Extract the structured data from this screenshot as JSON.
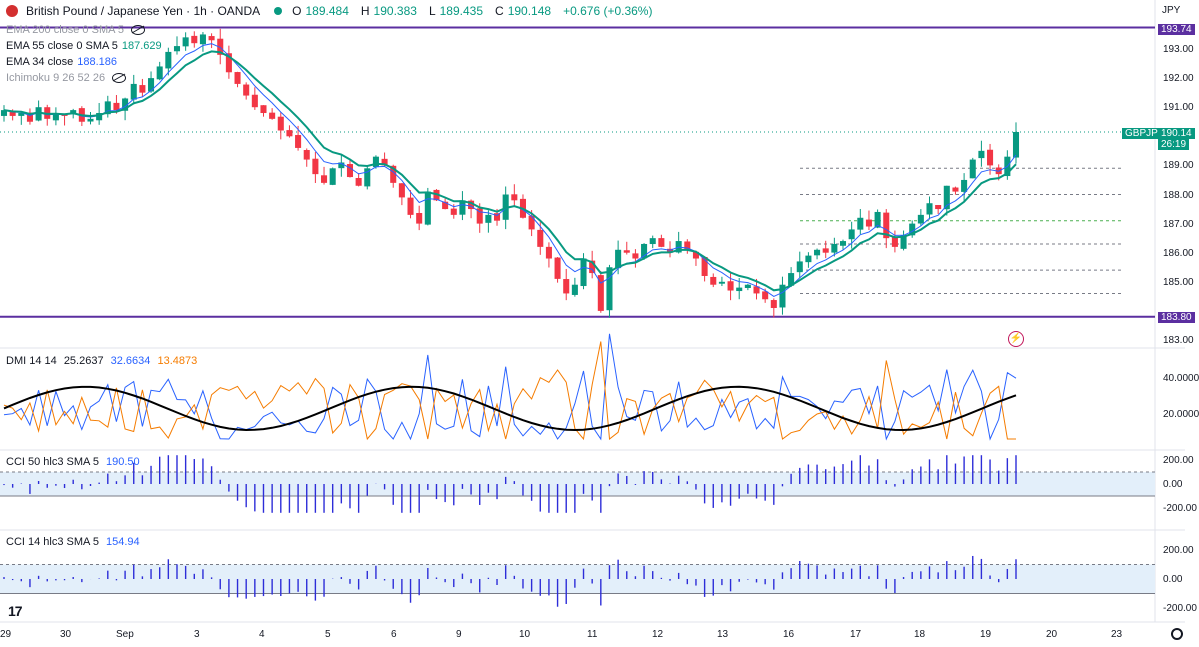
{
  "header": {
    "symbol_title": "British Pound / Japanese Yen · 1h · OANDA",
    "ohlc": [
      {
        "label": "O",
        "value": "189.484"
      },
      {
        "label": "H",
        "value": "190.383"
      },
      {
        "label": "L",
        "value": "189.435"
      },
      {
        "label": "C",
        "value": "190.148"
      }
    ],
    "change": "+0.676 (+0.36%)"
  },
  "indicators": {
    "ema200": {
      "label": "EMA 200 close 0 SMA 5"
    },
    "ema55": {
      "label": "EMA 55 close 0 SMA 5",
      "value": "187.629"
    },
    "ema34": {
      "label": "EMA 34 close",
      "value": "188.186"
    },
    "ichimoku": {
      "label": "Ichimoku 9 26 52 26"
    },
    "dmi": {
      "label": "DMI 14 14",
      "adx": "25.2637",
      "plus_di": "32.6634",
      "minus_di": "13.4873"
    },
    "cci50": {
      "label": "CCI 50 hlc3 SMA 5",
      "value": "190.50"
    },
    "cci14": {
      "label": "CCI 14 hlc3 SMA 5",
      "value": "154.94"
    }
  },
  "price_axis": {
    "currency": "JPY",
    "ticks": [
      "193.00",
      "192.00",
      "191.00",
      "189.00",
      "188.00",
      "187.00",
      "186.00",
      "185.00",
      "183.00"
    ],
    "tags": {
      "upper_line": "193.74",
      "symbol": "GBPJPY",
      "last_price": "190.14",
      "countdown": "26:19",
      "lower_line": "183.80"
    }
  },
  "dmi_axis": {
    "ticks": [
      "40.0000",
      "20.0000"
    ]
  },
  "cci50_axis": {
    "ticks": [
      "200.00",
      "0.00",
      "-200.00"
    ]
  },
  "cci14_axis": {
    "ticks": [
      "200.00",
      "0.00",
      "-200.00"
    ]
  },
  "time_axis": {
    "ticks": [
      "29",
      "30",
      "Sep",
      "3",
      "4",
      "5",
      "6",
      "9",
      "10",
      "11",
      "12",
      "13",
      "16",
      "17",
      "18",
      "19",
      "20",
      "23"
    ]
  },
  "branding": {
    "logo_text": "17"
  },
  "colors": {
    "up": "#089981",
    "down": "#f23645",
    "ema55": "#089981",
    "ema34": "#2962ff",
    "hline": "#5b2fa0",
    "adx": "#000000",
    "plus_di": "#2962ff",
    "minus_di": "#f57c00",
    "cci_bar": "#2d2dd8",
    "cci_band": "#e3effa"
  },
  "chart_data": {
    "type": "candlestick",
    "symbol": "GBPJPY",
    "timeframe": "1h",
    "price_range": [
      183.0,
      193.9
    ],
    "horizontal_levels": [
      193.74,
      183.8
    ],
    "last": 190.148,
    "closes": [
      190.9,
      190.7,
      190.8,
      190.5,
      191.0,
      190.6,
      190.8,
      190.7,
      190.9,
      190.5,
      190.6,
      190.8,
      191.2,
      190.9,
      191.3,
      191.8,
      191.5,
      192.0,
      192.4,
      192.9,
      193.1,
      193.4,
      193.2,
      193.5,
      193.3,
      192.8,
      192.2,
      191.8,
      191.4,
      191.0,
      190.8,
      190.6,
      190.2,
      190.0,
      189.6,
      189.2,
      188.7,
      188.4,
      188.9,
      189.1,
      188.6,
      188.3,
      188.9,
      189.3,
      189.0,
      188.4,
      187.9,
      187.3,
      187.0,
      188.1,
      187.8,
      187.5,
      187.3,
      187.8,
      187.5,
      187.0,
      187.3,
      187.1,
      188.0,
      187.8,
      187.2,
      186.8,
      186.2,
      185.8,
      185.1,
      184.6,
      184.9,
      185.8,
      185.3,
      184.0,
      185.5,
      186.1,
      186.0,
      185.8,
      186.3,
      186.5,
      186.2,
      186.0,
      186.4,
      186.1,
      185.8,
      185.2,
      184.9,
      185.0,
      184.7,
      184.8,
      184.9,
      184.6,
      184.4,
      184.1,
      184.9,
      185.3,
      185.7,
      185.9,
      186.1,
      186.0,
      186.3,
      186.4,
      186.8,
      187.2,
      186.9,
      187.4,
      186.5,
      186.2,
      186.6,
      187.0,
      187.3,
      187.7,
      187.5,
      188.3,
      188.1,
      188.5,
      189.2,
      189.5,
      189.0,
      188.7,
      189.3,
      190.148
    ]
  }
}
